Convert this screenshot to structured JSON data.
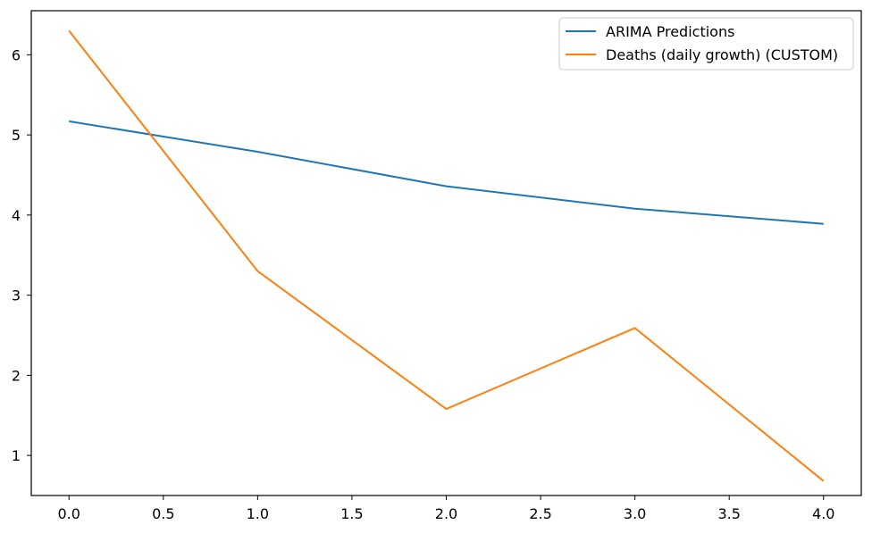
{
  "chart_data": {
    "type": "line",
    "title": "",
    "xlabel": "",
    "ylabel": "",
    "xlim": [
      -0.2,
      4.2
    ],
    "ylim": [
      0.5,
      6.55
    ],
    "xticks": [
      "0.0",
      "0.5",
      "1.0",
      "1.5",
      "2.0",
      "2.5",
      "3.0",
      "3.5",
      "4.0"
    ],
    "yticks": [
      "1",
      "2",
      "3",
      "4",
      "5",
      "6"
    ],
    "grid": false,
    "legend_position": "top-right",
    "series": [
      {
        "name": "ARIMA Predictions",
        "color": "#1f77b4",
        "x": [
          0,
          1,
          2,
          3,
          4
        ],
        "y": [
          5.17,
          4.79,
          4.36,
          4.08,
          3.89
        ]
      },
      {
        "name": "Deaths (daily growth) (CUSTOM)",
        "color": "#ff7f0e",
        "x": [
          0,
          1,
          2,
          3,
          4
        ],
        "y": [
          6.3,
          3.3,
          1.58,
          2.59,
          0.68
        ]
      }
    ]
  }
}
